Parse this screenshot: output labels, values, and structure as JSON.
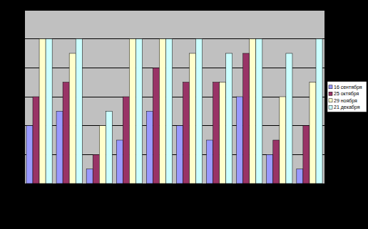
{
  "chart_data": {
    "type": "bar",
    "categories": [
      null,
      null,
      null,
      null,
      null,
      null,
      null,
      null,
      null,
      null
    ],
    "series": [
      {
        "name": "16 сентября",
        "color": "#9999ff",
        "values": [
          2,
          2.5,
          0.5,
          1.5,
          2.5,
          2,
          1.5,
          3,
          1,
          0.5
        ]
      },
      {
        "name": "25 октября",
        "color": "#993366",
        "values": [
          3,
          3.5,
          1,
          3,
          4,
          3.5,
          3.5,
          4.5,
          1.5,
          2
        ]
      },
      {
        "name": "29 ноября",
        "color": "#ffffcc",
        "values": [
          5,
          4.5,
          2,
          5,
          5,
          4.5,
          3.5,
          5,
          3,
          3.5
        ]
      },
      {
        "name": "21 декабря",
        "color": "#ccffff",
        "values": [
          5,
          5,
          2.5,
          5,
          5,
          5,
          4.5,
          5,
          4.5,
          5
        ]
      }
    ],
    "ylim": [
      0,
      6
    ],
    "yticks": [
      0,
      1,
      2,
      3,
      4,
      5,
      6
    ],
    "grid": true,
    "legend": "right",
    "tick_labels": false
  }
}
